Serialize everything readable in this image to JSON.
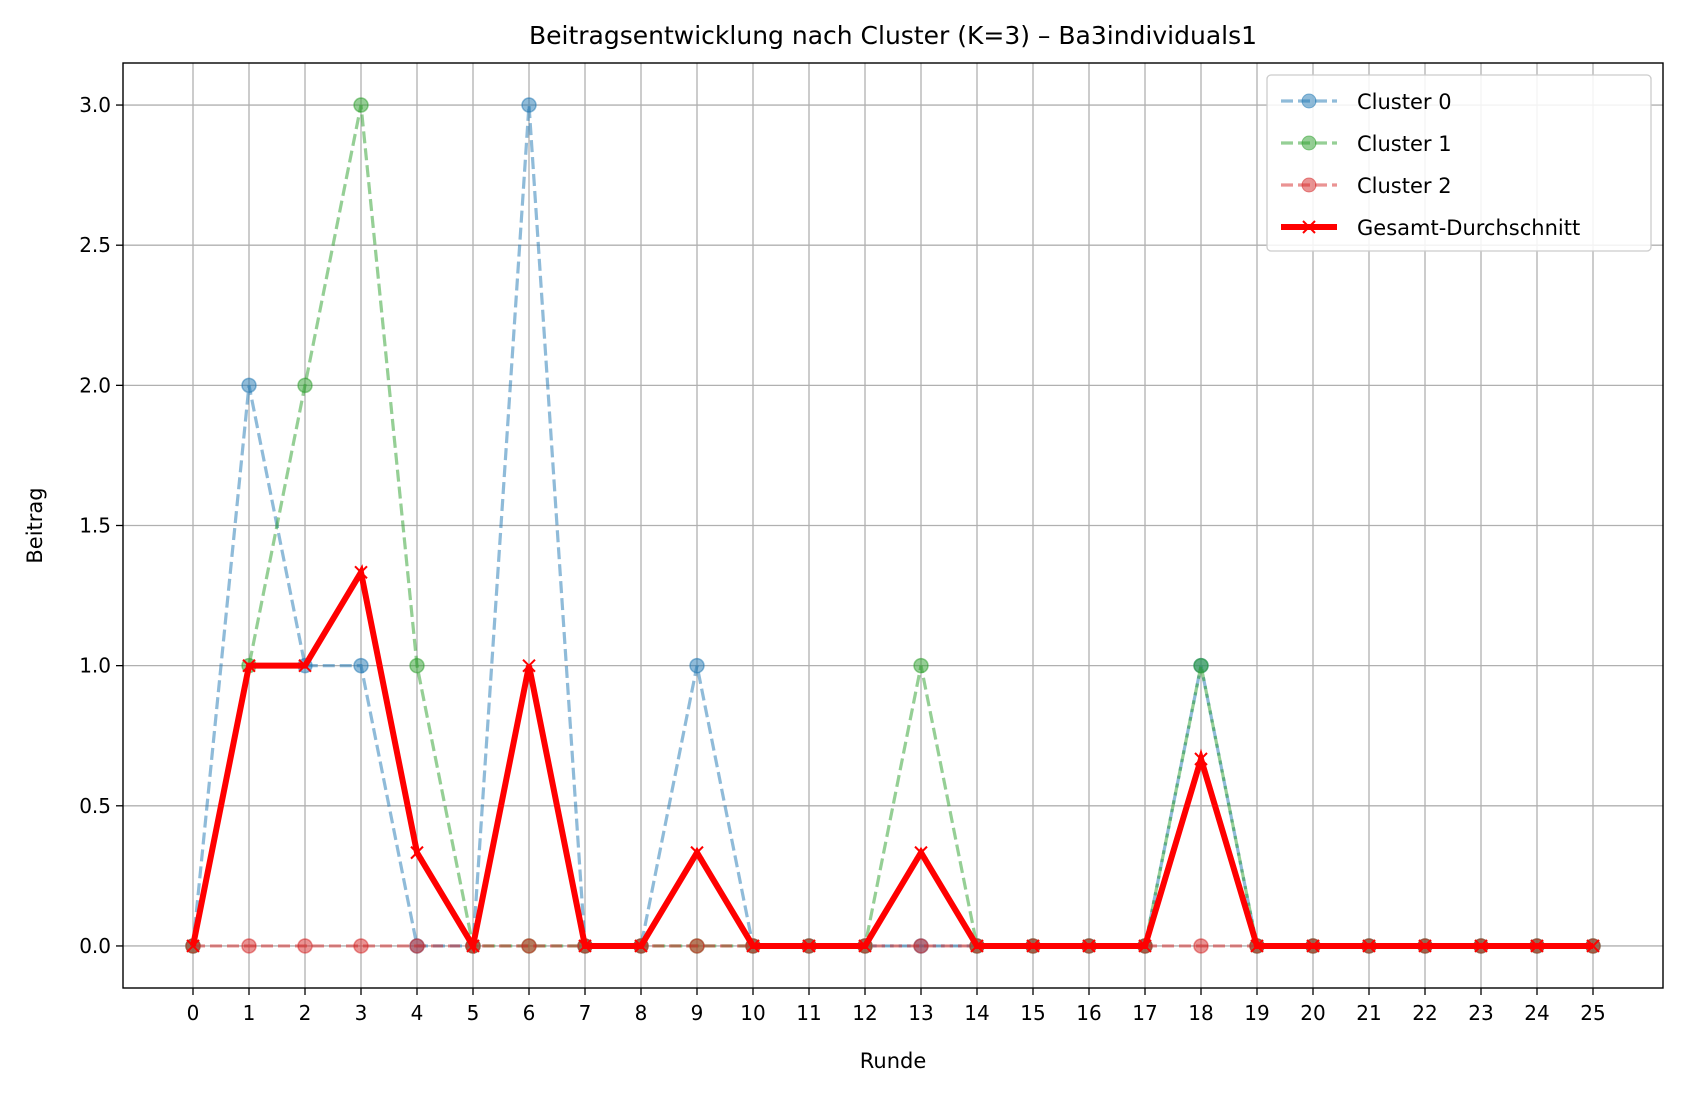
{
  "chart_data": {
    "type": "line",
    "title": "Beitragsentwicklung nach Cluster (K=3) – Ba3individuals1",
    "xlabel": "Runde",
    "ylabel": "Beitrag",
    "x": [
      0,
      1,
      2,
      3,
      4,
      5,
      6,
      7,
      8,
      9,
      10,
      11,
      12,
      13,
      14,
      15,
      16,
      17,
      18,
      19,
      20,
      21,
      22,
      23,
      24,
      25
    ],
    "x_tick_labels": [
      "0",
      "1",
      "2",
      "3",
      "4",
      "5",
      "6",
      "7",
      "8",
      "9",
      "10",
      "11",
      "12",
      "13",
      "14",
      "15",
      "16",
      "17",
      "18",
      "19",
      "20",
      "21",
      "22",
      "23",
      "24",
      "25"
    ],
    "y_tick_values": [
      0.0,
      0.5,
      1.0,
      1.5,
      2.0,
      2.5,
      3.0
    ],
    "y_tick_labels": [
      "0.0",
      "0.5",
      "1.0",
      "1.5",
      "2.0",
      "2.5",
      "3.0"
    ],
    "xlim": [
      -1.25,
      26.25
    ],
    "ylim": [
      -0.15,
      3.15
    ],
    "grid": true,
    "legend_position": "top-right",
    "series": [
      {
        "name": "Cluster 0",
        "color": "#1f77b4",
        "style": "dashed",
        "marker": "circle",
        "alpha": 0.5,
        "values": [
          0,
          2,
          1,
          1,
          0,
          0,
          3,
          0,
          0,
          1,
          0,
          0,
          0,
          0,
          0,
          0,
          0,
          0,
          1,
          0,
          0,
          0,
          0,
          0,
          0,
          0
        ]
      },
      {
        "name": "Cluster 1",
        "color": "#2ca02c",
        "style": "dashed",
        "marker": "circle",
        "alpha": 0.5,
        "values": [
          0,
          1,
          2,
          3,
          1,
          0,
          0,
          0,
          0,
          0,
          0,
          0,
          0,
          1,
          0,
          0,
          0,
          0,
          1,
          0,
          0,
          0,
          0,
          0,
          0,
          0
        ]
      },
      {
        "name": "Cluster 2",
        "color": "#d62728",
        "style": "dashed",
        "marker": "circle",
        "alpha": 0.5,
        "values": [
          0,
          0,
          0,
          0,
          0,
          0,
          0,
          0,
          0,
          0,
          0,
          0,
          0,
          0,
          0,
          0,
          0,
          0,
          0,
          0,
          0,
          0,
          0,
          0,
          0,
          0
        ]
      },
      {
        "name": "Gesamt-Durchschnitt",
        "color": "#ff0000",
        "style": "solid",
        "marker": "x",
        "alpha": 1,
        "values": [
          0,
          1,
          1,
          1.333,
          0.333,
          0,
          1,
          0,
          0,
          0.333,
          0,
          0,
          0,
          0.333,
          0,
          0,
          0,
          0,
          0.667,
          0,
          0,
          0,
          0,
          0,
          0,
          0
        ]
      }
    ]
  }
}
